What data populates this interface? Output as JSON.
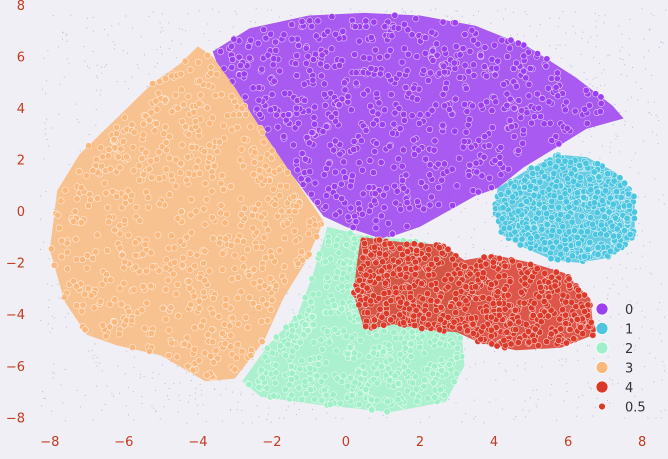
{
  "colors": {
    "background": "#f0eff5",
    "tick_text": "#c23b22",
    "noise_dots": "#8a8fd0"
  },
  "chart_data": {
    "type": "scatter",
    "title": "",
    "xlabel": "",
    "ylabel": "",
    "xlim": [
      -8.4,
      8.7
    ],
    "ylim": [
      -8.3,
      8.2
    ],
    "x_ticks": [
      "−8",
      "−6",
      "−4",
      "−2",
      "0",
      "2",
      "4",
      "6",
      "8"
    ],
    "y_ticks": [
      "8",
      "6",
      "4",
      "2",
      "0",
      "−2",
      "−4",
      "−6",
      "−8"
    ],
    "grid": false,
    "legend_position": "bottom-right",
    "series": [
      {
        "name": "0",
        "color": "#9b3ff0",
        "region": [
          [
            -3.6,
            6.2
          ],
          [
            -2.6,
            7.1
          ],
          [
            -1,
            7.6
          ],
          [
            0.5,
            7.7
          ],
          [
            2,
            7.6
          ],
          [
            3.5,
            7.2
          ],
          [
            4.9,
            6.4
          ],
          [
            6.2,
            5.2
          ],
          [
            7.2,
            4.1
          ],
          [
            7.5,
            3.6
          ],
          [
            6.5,
            3.2
          ],
          [
            5.6,
            2.4
          ],
          [
            4.8,
            1.7
          ],
          [
            4.1,
            0.9
          ],
          [
            3.5,
            0.6
          ],
          [
            3,
            0.2
          ],
          [
            2,
            -0.6
          ],
          [
            1,
            -1.1
          ],
          [
            0,
            -0.6
          ],
          [
            -0.6,
            -0.2
          ],
          [
            -1.5,
            1.5
          ],
          [
            -2.3,
            3.2
          ],
          [
            -3,
            4.8
          ],
          [
            -3.5,
            5.8
          ]
        ]
      },
      {
        "name": "1",
        "color": "#4cc6e0",
        "region": [
          [
            4.1,
            0.9
          ],
          [
            4.9,
            1.6
          ],
          [
            5.7,
            2.2
          ],
          [
            6.5,
            2.1
          ],
          [
            7.3,
            1.5
          ],
          [
            7.8,
            0.6
          ],
          [
            7.8,
            -1
          ],
          [
            7.1,
            -1.8
          ],
          [
            6.3,
            -2
          ],
          [
            5.6,
            -1.9
          ],
          [
            4.8,
            -1.4
          ],
          [
            4.2,
            -0.9
          ],
          [
            4,
            0
          ]
        ]
      },
      {
        "name": "2",
        "color": "#9ff0c8",
        "region": [
          [
            -0.5,
            -0.6
          ],
          [
            0.6,
            -1
          ],
          [
            1.8,
            -1.1
          ],
          [
            2.8,
            -1.5
          ],
          [
            3.4,
            -2.6
          ],
          [
            3.6,
            -3.4
          ],
          [
            3.1,
            -4.3
          ],
          [
            3.2,
            -6
          ],
          [
            2.7,
            -7.4
          ],
          [
            1.2,
            -7.8
          ],
          [
            -0.8,
            -7.5
          ],
          [
            -2.3,
            -7.2
          ],
          [
            -2.8,
            -6.6
          ],
          [
            -2.1,
            -5.2
          ],
          [
            -1.3,
            -4
          ],
          [
            -0.9,
            -2.5
          ]
        ]
      },
      {
        "name": "3",
        "color": "#f9b87e",
        "region": [
          [
            -4,
            6.4
          ],
          [
            -3.6,
            6
          ],
          [
            -3,
            4.8
          ],
          [
            -2.3,
            3.2
          ],
          [
            -1.5,
            1.5
          ],
          [
            -0.6,
            -0.4
          ],
          [
            -1.1,
            -2
          ],
          [
            -1.7,
            -3.4
          ],
          [
            -2.2,
            -5
          ],
          [
            -3,
            -6.5
          ],
          [
            -3.8,
            -6.6
          ],
          [
            -5,
            -5.6
          ],
          [
            -6.2,
            -5.2
          ],
          [
            -7,
            -4.8
          ],
          [
            -7.6,
            -3.5
          ],
          [
            -8,
            -1.5
          ],
          [
            -7.8,
            0.8
          ],
          [
            -7.2,
            2.2
          ],
          [
            -6.2,
            3.6
          ],
          [
            -5.2,
            5
          ],
          [
            -4.5,
            5.7
          ]
        ]
      },
      {
        "name": "4",
        "color": "#db3a2a",
        "region": [
          [
            0.4,
            -1
          ],
          [
            1.5,
            -1.2
          ],
          [
            2.6,
            -1.3
          ],
          [
            3.2,
            -1.9
          ],
          [
            4,
            -1.7
          ],
          [
            5,
            -2
          ],
          [
            5.9,
            -2.4
          ],
          [
            6.6,
            -3.4
          ],
          [
            6.7,
            -4.8
          ],
          [
            5.8,
            -5.3
          ],
          [
            4.6,
            -5.4
          ],
          [
            3.6,
            -5.1
          ],
          [
            3,
            -4.7
          ],
          [
            2.2,
            -4.6
          ],
          [
            1.3,
            -4.4
          ],
          [
            0.5,
            -4.6
          ],
          [
            0.2,
            -3.2
          ],
          [
            0.3,
            -2
          ]
        ]
      }
    ],
    "legend": [
      "0",
      "1",
      "2",
      "3",
      "4",
      "0.5"
    ]
  }
}
